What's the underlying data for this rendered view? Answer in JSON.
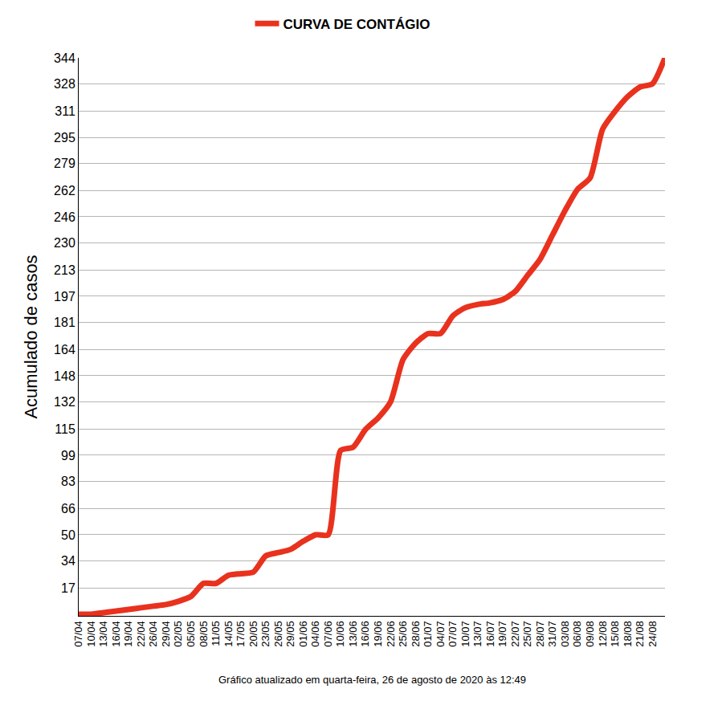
{
  "chart_data": {
    "type": "line",
    "y_label": "Acumulado de casos",
    "annotation": "Gráfico atualizado em quarta-feira, 26 de agosto de 2020 às 12:49",
    "legend": "top",
    "grid": true,
    "categories": [
      "07/04",
      "10/04",
      "13/04",
      "16/04",
      "19/04",
      "22/04",
      "26/04",
      "29/04",
      "02/05",
      "05/05",
      "08/05",
      "11/05",
      "14/05",
      "17/05",
      "20/05",
      "23/05",
      "26/05",
      "29/05",
      "01/06",
      "04/06",
      "07/06",
      "10/06",
      "13/06",
      "16/06",
      "19/06",
      "22/06",
      "25/06",
      "28/06",
      "01/07",
      "04/07",
      "07/07",
      "10/07",
      "13/07",
      "16/07",
      "19/07",
      "22/07",
      "25/07",
      "28/07",
      "31/07",
      "03/08",
      "06/08",
      "09/08",
      "12/08",
      "15/08",
      "18/08",
      "21/08",
      "24/08",
      null
    ],
    "series": [
      {
        "name": "CURVA DE CONTÁGIO",
        "color": "#e8321e",
        "line_style": "solid",
        "values": [
          1,
          1,
          2,
          3,
          4,
          5,
          6,
          7,
          9,
          12,
          20,
          20,
          25,
          26,
          27,
          37,
          39,
          41,
          46,
          50,
          50,
          102,
          104,
          115,
          122,
          132,
          158,
          168,
          174,
          174,
          185,
          190,
          192,
          193,
          195,
          200,
          210,
          220,
          235,
          250,
          263,
          270,
          300,
          311,
          320,
          326,
          328,
          344
        ]
      }
    ],
    "ylim": [
      0,
      344
    ],
    "yticks": [
      17,
      34,
      50,
      66,
      83,
      99,
      115,
      132,
      148,
      164,
      181,
      197,
      213,
      230,
      246,
      262,
      279,
      295,
      311,
      328,
      344
    ]
  }
}
